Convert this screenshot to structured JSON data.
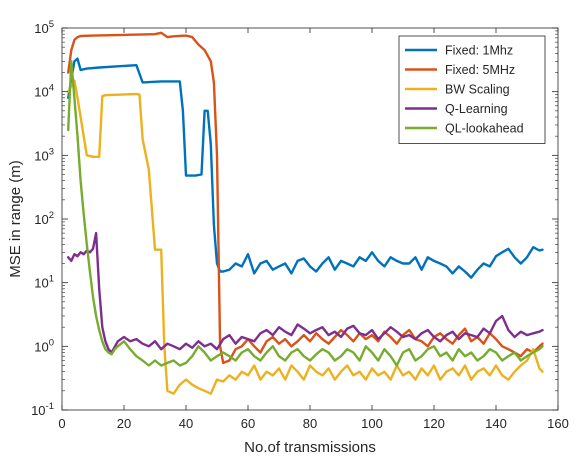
{
  "chart_data": {
    "type": "line",
    "xlabel": "No.of transmissions",
    "ylabel": "MSE in range (m)",
    "xlim": [
      0,
      160
    ],
    "ylim": [
      0.1,
      100000
    ],
    "yscale": "log",
    "grid": false,
    "legend_position": "top-right",
    "x_ticks": [
      0,
      20,
      40,
      60,
      80,
      100,
      120,
      140,
      160
    ],
    "x_tick_labels": [
      "0",
      "20",
      "40",
      "60",
      "80",
      "100",
      "120",
      "140",
      "160"
    ],
    "y_tick_exponents": [
      -1,
      0,
      1,
      2,
      3,
      4,
      5
    ],
    "y_tick_base": "10",
    "series": [
      {
        "name": "Fixed: 1Mhz",
        "color": "#0072BD",
        "x": [
          2,
          4,
          5,
          6,
          8,
          12,
          18,
          24,
          26,
          32,
          38,
          39,
          40,
          42,
          43,
          45,
          46,
          47,
          48,
          49,
          50,
          51,
          52,
          54,
          56,
          58,
          60,
          62,
          64,
          66,
          68,
          70,
          72,
          74,
          76,
          78,
          80,
          82,
          84,
          86,
          88,
          90,
          92,
          94,
          96,
          98,
          100,
          102,
          104,
          106,
          108,
          110,
          112,
          114,
          116,
          118,
          120,
          122,
          124,
          126,
          128,
          130,
          132,
          134,
          136,
          138,
          140,
          142,
          144,
          146,
          148,
          150,
          152,
          154,
          155
        ],
        "y": [
          8000,
          30000,
          33000,
          22000,
          23000,
          24000,
          25000,
          26000,
          14000,
          14500,
          14500,
          5000,
          480,
          480,
          480,
          500,
          5000,
          5000,
          1500,
          80,
          20,
          15,
          15,
          16,
          20,
          18,
          28,
          14,
          20,
          22,
          16,
          18,
          20,
          14,
          22,
          24,
          18,
          15,
          20,
          25,
          16,
          22,
          20,
          18,
          25,
          22,
          30,
          22,
          18,
          25,
          22,
          20,
          20,
          25,
          16,
          25,
          22,
          20,
          18,
          14,
          18,
          15,
          12,
          16,
          20,
          18,
          26,
          30,
          34,
          25,
          20,
          25,
          36,
          32,
          33
        ]
      },
      {
        "name": "Fixed: 5MHz",
        "color": "#D95319",
        "x": [
          2,
          3,
          4,
          5,
          6,
          10,
          20,
          30,
          32,
          34,
          36,
          40,
          42,
          44,
          46,
          48,
          49,
          50,
          51,
          52,
          54,
          56,
          58,
          60,
          62,
          64,
          66,
          68,
          70,
          72,
          74,
          76,
          78,
          80,
          82,
          84,
          86,
          88,
          90,
          92,
          94,
          96,
          98,
          100,
          102,
          104,
          106,
          108,
          110,
          112,
          114,
          116,
          118,
          120,
          122,
          124,
          126,
          128,
          130,
          132,
          134,
          136,
          138,
          140,
          142,
          144,
          146,
          148,
          150,
          152,
          154,
          155
        ],
        "y": [
          20000,
          45000,
          65000,
          72000,
          75000,
          76000,
          78000,
          80000,
          84000,
          72000,
          74000,
          76000,
          72000,
          55000,
          45000,
          30000,
          14000,
          1000,
          1,
          0.55,
          0.6,
          0.9,
          1.0,
          1.3,
          1.0,
          0.8,
          1.2,
          1.4,
          1.1,
          1.3,
          1.0,
          1.2,
          1.5,
          1.2,
          1.6,
          1.3,
          1.1,
          1.4,
          1.8,
          1.5,
          1.2,
          1.6,
          1.3,
          1.5,
          1.2,
          1.7,
          1.4,
          1.1,
          1.5,
          1.8,
          1.3,
          1.2,
          1.0,
          1.4,
          1.6,
          1.3,
          1.1,
          1.5,
          1.9,
          1.2,
          1.4,
          1.1,
          1.6,
          1.3,
          1.0,
          0.9,
          0.8,
          0.7,
          0.9,
          0.8,
          1.0,
          1.1
        ]
      },
      {
        "name": "BW Scaling",
        "color": "#EDB120",
        "x": [
          2,
          4,
          5,
          7,
          8,
          10,
          11,
          12,
          13,
          14,
          24,
          25,
          26,
          28,
          30,
          31,
          32,
          33,
          34,
          36,
          38,
          40,
          42,
          44,
          46,
          48,
          50,
          52,
          54,
          56,
          58,
          60,
          62,
          64,
          66,
          68,
          70,
          72,
          74,
          76,
          78,
          80,
          82,
          84,
          86,
          88,
          90,
          92,
          94,
          96,
          98,
          100,
          102,
          104,
          106,
          108,
          110,
          112,
          114,
          116,
          118,
          120,
          122,
          124,
          126,
          128,
          130,
          132,
          134,
          136,
          138,
          140,
          142,
          144,
          146,
          148,
          150,
          152,
          154,
          155
        ],
        "y": [
          10000,
          15000,
          8000,
          2000,
          1000,
          950,
          950,
          950,
          8500,
          8800,
          9200,
          9000,
          1800,
          600,
          33,
          33,
          33,
          1,
          0.2,
          0.18,
          0.25,
          0.3,
          0.25,
          0.22,
          0.2,
          0.18,
          0.3,
          0.28,
          0.35,
          0.3,
          0.4,
          0.35,
          0.5,
          0.3,
          0.4,
          0.35,
          0.45,
          0.3,
          0.5,
          0.4,
          0.3,
          0.5,
          0.4,
          0.35,
          0.45,
          0.3,
          0.4,
          0.5,
          0.35,
          0.4,
          0.3,
          0.45,
          0.35,
          0.4,
          0.3,
          0.5,
          0.35,
          0.4,
          0.3,
          0.45,
          0.35,
          0.5,
          0.3,
          0.4,
          0.45,
          0.35,
          0.5,
          0.3,
          0.4,
          0.45,
          0.35,
          0.5,
          0.35,
          0.3,
          0.4,
          0.5,
          0.6,
          0.9,
          0.45,
          0.4
        ]
      },
      {
        "name": "Q-Learning",
        "color": "#7E2F8E",
        "x": [
          2,
          3,
          4,
          5,
          6,
          7,
          8,
          9,
          10,
          11,
          12,
          13,
          14,
          15,
          16,
          18,
          20,
          22,
          24,
          26,
          28,
          30,
          32,
          34,
          36,
          38,
          40,
          42,
          44,
          46,
          48,
          50,
          52,
          54,
          56,
          58,
          60,
          62,
          64,
          66,
          68,
          70,
          72,
          74,
          76,
          78,
          80,
          82,
          84,
          86,
          88,
          90,
          92,
          94,
          96,
          98,
          100,
          102,
          104,
          106,
          108,
          110,
          112,
          114,
          116,
          118,
          120,
          122,
          124,
          126,
          128,
          130,
          132,
          134,
          136,
          138,
          140,
          142,
          144,
          146,
          148,
          150,
          152,
          154,
          155
        ],
        "y": [
          25,
          22,
          28,
          26,
          30,
          28,
          32,
          30,
          34,
          60,
          8,
          2,
          1.2,
          0.9,
          0.8,
          1.2,
          1.4,
          1.2,
          1.3,
          1.1,
          1.0,
          1.2,
          0.9,
          1.1,
          1.0,
          0.9,
          1.1,
          0.95,
          1.2,
          1.0,
          1.1,
          0.9,
          1.3,
          1.5,
          1.1,
          1.4,
          1.3,
          1.2,
          1.6,
          1.8,
          1.5,
          2.0,
          1.7,
          1.5,
          2.2,
          1.9,
          1.6,
          1.8,
          2.0,
          1.5,
          1.7,
          1.4,
          1.9,
          2.1,
          1.6,
          1.5,
          1.8,
          1.3,
          1.6,
          2.0,
          1.7,
          1.4,
          1.5,
          1.3,
          1.6,
          1.8,
          1.4,
          1.2,
          1.5,
          1.7,
          1.3,
          1.6,
          1.5,
          1.4,
          1.9,
          1.6,
          2.5,
          3.0,
          1.8,
          1.4,
          1.7,
          1.5,
          1.6,
          1.7,
          1.8
        ]
      },
      {
        "name": "QL-lookahead",
        "color": "#77AC30",
        "x": [
          2,
          3,
          4,
          5,
          6,
          7,
          8,
          9,
          10,
          11,
          12,
          13,
          14,
          15,
          16,
          17,
          18,
          20,
          22,
          24,
          26,
          28,
          30,
          32,
          34,
          36,
          38,
          40,
          42,
          44,
          46,
          48,
          50,
          52,
          54,
          56,
          58,
          60,
          62,
          64,
          66,
          68,
          70,
          72,
          74,
          76,
          78,
          80,
          82,
          84,
          86,
          88,
          90,
          92,
          94,
          96,
          98,
          100,
          102,
          104,
          106,
          108,
          110,
          112,
          114,
          116,
          118,
          120,
          122,
          124,
          126,
          128,
          130,
          132,
          134,
          136,
          138,
          140,
          142,
          144,
          146,
          148,
          150,
          152,
          154,
          155
        ],
        "y": [
          2500,
          30000,
          8000,
          2000,
          400,
          120,
          40,
          15,
          6,
          3,
          1.8,
          1.2,
          0.9,
          0.8,
          0.75,
          0.9,
          1.0,
          1.2,
          0.9,
          0.7,
          0.6,
          0.5,
          0.6,
          0.5,
          0.55,
          0.6,
          0.5,
          0.55,
          0.7,
          1.0,
          0.8,
          0.6,
          0.7,
          0.8,
          0.7,
          0.6,
          0.8,
          0.9,
          0.7,
          0.6,
          0.8,
          1.0,
          0.7,
          0.6,
          0.8,
          0.9,
          0.7,
          0.6,
          0.75,
          0.9,
          0.8,
          0.6,
          0.7,
          0.9,
          0.8,
          0.6,
          1.0,
          0.8,
          0.6,
          0.9,
          0.7,
          0.5,
          0.8,
          0.9,
          0.6,
          0.7,
          0.9,
          1.0,
          0.7,
          0.8,
          0.6,
          0.9,
          0.7,
          0.8,
          0.6,
          0.7,
          0.9,
          0.8,
          0.6,
          0.7,
          0.8,
          0.6,
          0.7,
          0.8,
          0.9,
          1.0
        ]
      }
    ]
  }
}
